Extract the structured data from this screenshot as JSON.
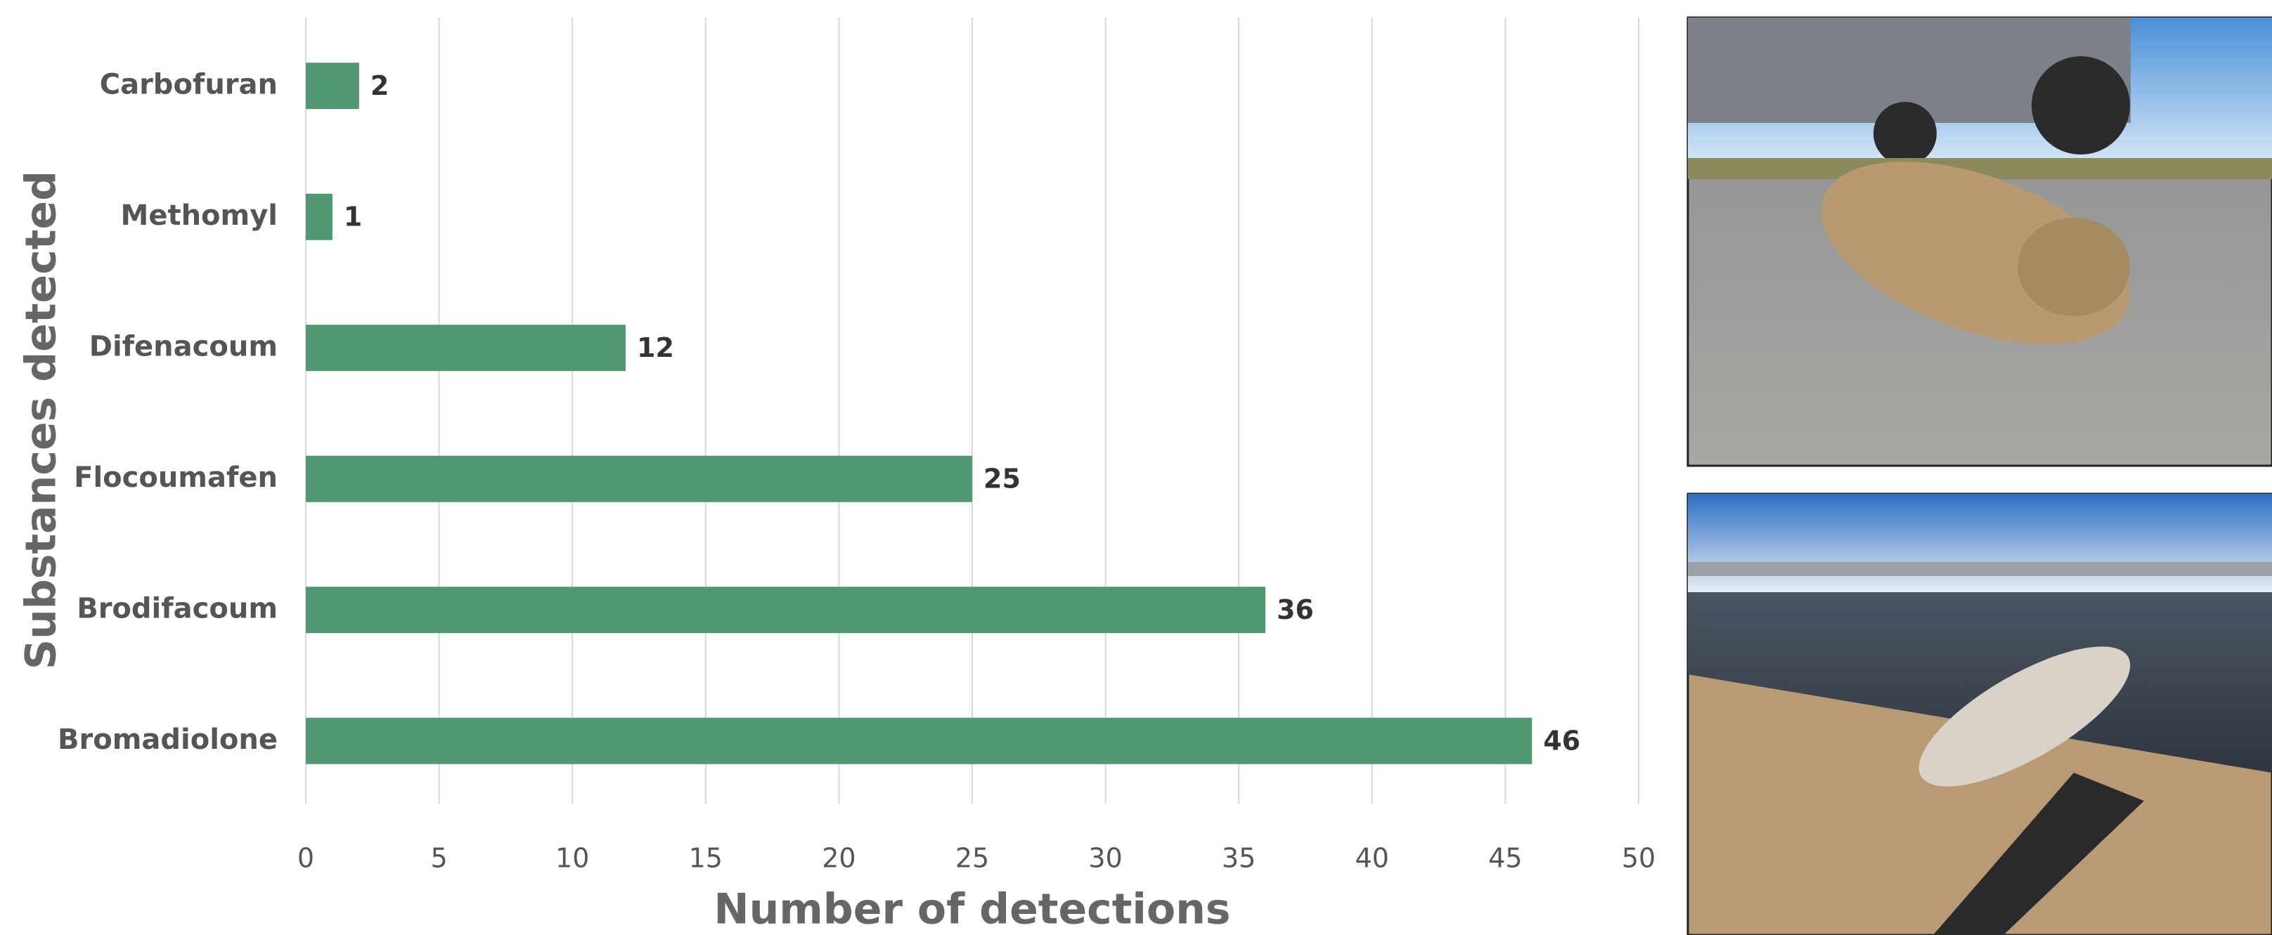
{
  "chart_data": {
    "type": "bar",
    "x_label": "Number of detections",
    "y_label": "Substances detected",
    "categories": [
      "Carbofuran",
      "Methomyl",
      "Difenacoum",
      "Flocoumafen",
      "Brodifacoum",
      "Bromadiolone"
    ],
    "values": [
      2,
      1,
      12,
      25,
      36,
      46
    ],
    "color": "#519872",
    "xlim": [
      0,
      50
    ],
    "xticks": [
      0,
      5,
      10,
      15,
      20,
      25,
      30,
      35,
      40,
      45,
      50
    ],
    "grid": true
  }
}
